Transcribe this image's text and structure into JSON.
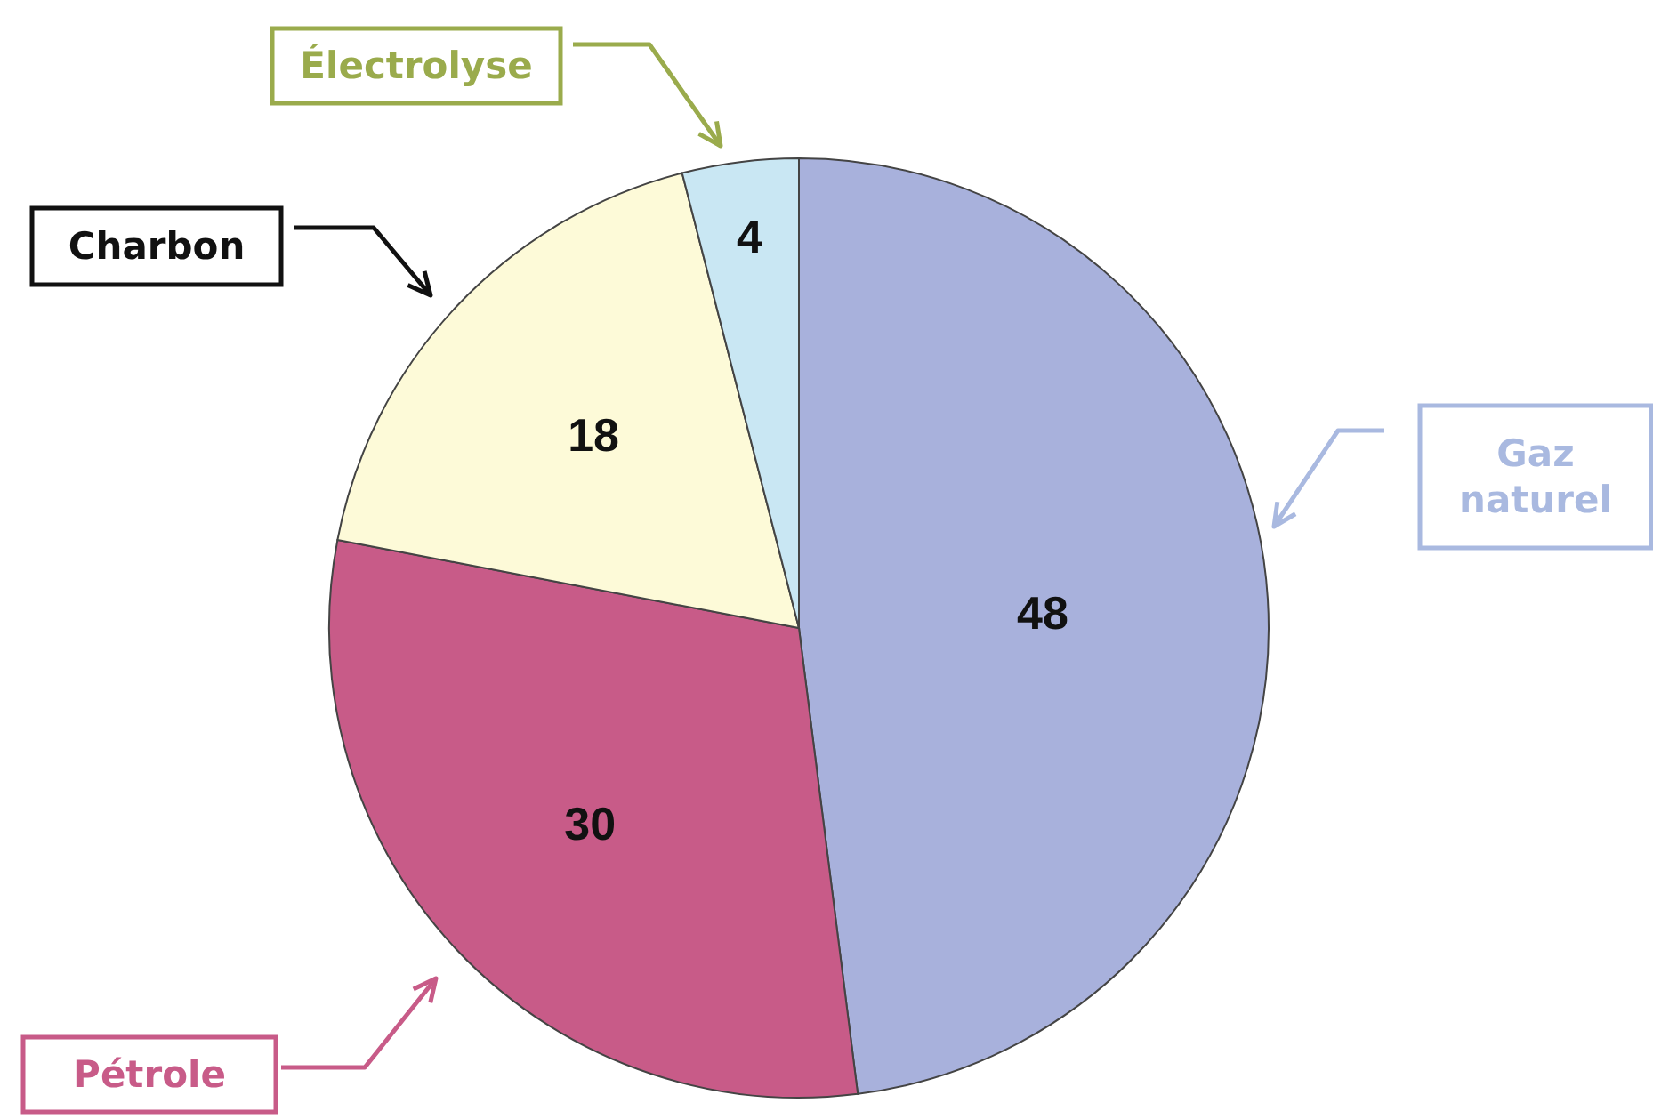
{
  "chart_data": {
    "type": "pie",
    "categories": [
      "Gaz naturel",
      "Pétrole",
      "Charbon",
      "Électrolyse"
    ],
    "values": [
      48,
      30,
      18,
      4
    ],
    "colors": [
      "#a8b1dc",
      "#c85b88",
      "#fdfad8",
      "#c9e7f3"
    ],
    "data_labels": true
  }
}
